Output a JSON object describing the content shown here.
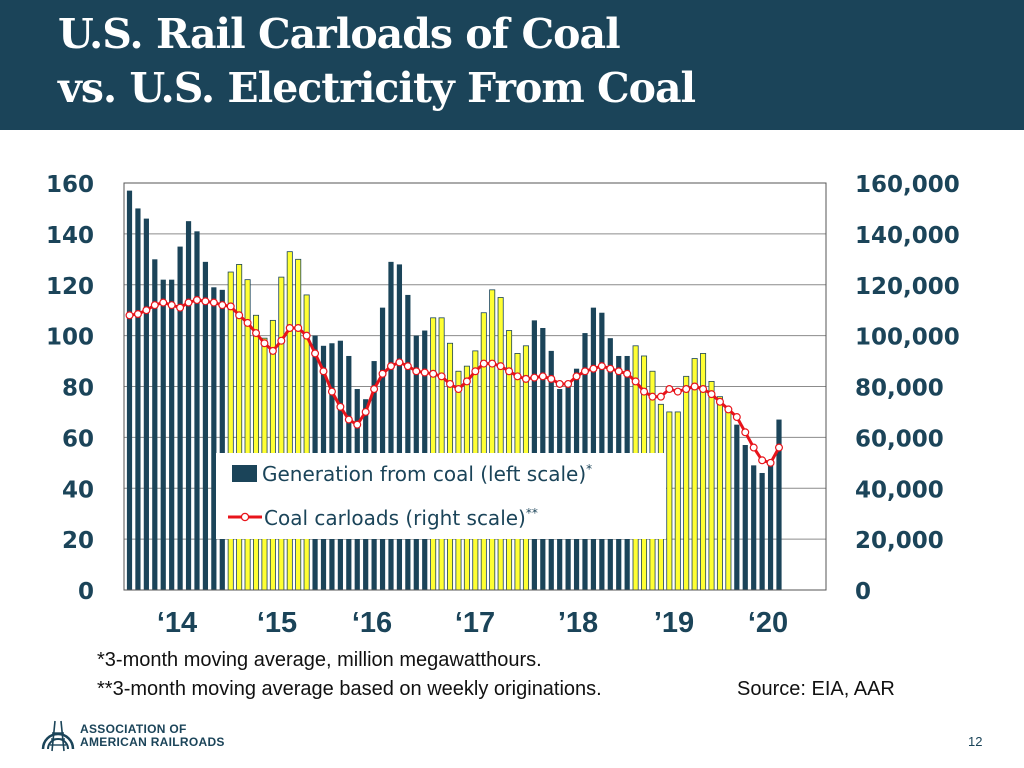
{
  "header": {
    "title_line1": "U.S. Rail Carloads of Coal",
    "title_line2": "vs. U.S. Electricity From Coal"
  },
  "colors": {
    "header_bg": "#1b4459",
    "bar_dark": "#1b4459",
    "bar_highlight": "#ffff33",
    "line": "#e8141b",
    "axis_text": "#1b4459"
  },
  "chart_data": {
    "type": "bar+line",
    "left_axis": {
      "range": [
        0,
        160
      ],
      "ticks": [
        "160",
        "140",
        "120",
        "100",
        "80",
        "60",
        "40",
        "20",
        "0"
      ]
    },
    "right_axis": {
      "range": [
        0,
        160000
      ],
      "ticks": [
        "160,000",
        "140,000",
        "120,000",
        "100,000",
        "80,000",
        "60,000",
        "40,000",
        "20,000",
        "0"
      ]
    },
    "x_tick_labels": [
      "‘14",
      "‘15",
      "‘16",
      "‘17",
      "’18",
      "’19",
      "‘20"
    ],
    "legend": {
      "bar_label": "Generation from coal (left scale)",
      "bar_sup": "*",
      "line_label": "Coal carloads (right scale)",
      "line_sup": "**"
    },
    "series": [
      {
        "name": "Generation from coal (left scale)",
        "axis": "left",
        "start": "2014-01",
        "values": [
          157,
          150,
          146,
          130,
          122,
          122,
          135,
          145,
          141,
          129,
          119,
          118,
          125,
          128,
          122,
          108,
          99,
          106,
          123,
          133,
          130,
          116,
          100,
          96,
          97,
          98,
          92,
          79,
          75,
          90,
          111,
          129,
          128,
          116,
          100,
          102,
          107,
          107,
          97,
          86,
          88,
          94,
          109,
          118,
          115,
          102,
          93,
          96,
          106,
          103,
          94,
          79,
          81,
          87,
          101,
          111,
          109,
          99,
          92,
          92,
          96,
          92,
          86,
          73,
          70,
          70,
          84,
          91,
          93,
          82,
          76,
          71,
          65,
          57,
          49,
          46,
          49,
          67
        ],
        "highlight": [
          false,
          false,
          false,
          false,
          false,
          false,
          false,
          false,
          false,
          false,
          false,
          false,
          true,
          true,
          true,
          true,
          true,
          true,
          true,
          true,
          true,
          true,
          false,
          false,
          false,
          false,
          false,
          false,
          false,
          false,
          false,
          false,
          false,
          false,
          false,
          false,
          true,
          true,
          true,
          true,
          true,
          true,
          true,
          true,
          true,
          true,
          true,
          true,
          false,
          false,
          false,
          false,
          false,
          false,
          false,
          false,
          false,
          false,
          false,
          false,
          true,
          true,
          true,
          true,
          true,
          true,
          true,
          true,
          true,
          true,
          true,
          true,
          false,
          false,
          false,
          false,
          false,
          false
        ]
      },
      {
        "name": "Coal carloads (right scale)",
        "axis": "right",
        "start": "2014-01",
        "values": [
          108000,
          108500,
          110000,
          112000,
          113000,
          112000,
          111000,
          113000,
          114000,
          113500,
          113000,
          112000,
          111500,
          108000,
          105000,
          101000,
          97000,
          94000,
          98000,
          103000,
          103000,
          100000,
          93000,
          86000,
          78000,
          72000,
          67000,
          65000,
          70000,
          79000,
          85000,
          88000,
          89500,
          88000,
          86000,
          85500,
          85000,
          84000,
          81000,
          79000,
          82000,
          86000,
          89000,
          89000,
          88000,
          86000,
          84000,
          83000,
          83500,
          84000,
          83000,
          81000,
          81000,
          84000,
          86000,
          87000,
          88000,
          87000,
          86000,
          85000,
          82000,
          78000,
          76000,
          76000,
          79000,
          78000,
          79000,
          80000,
          79000,
          77000,
          74000,
          71000,
          68000,
          62000,
          56000,
          51000,
          50000,
          56000
        ]
      }
    ]
  },
  "notes": {
    "line1": "*3-month moving average, million megawatthours.",
    "line2": "**3-month moving average based on weekly originations.",
    "source": "Source: EIA, AAR"
  },
  "footer": {
    "logo_line1": "ASSOCIATION OF",
    "logo_line2": "AMERICAN RAILROADS",
    "page_number": "12"
  }
}
